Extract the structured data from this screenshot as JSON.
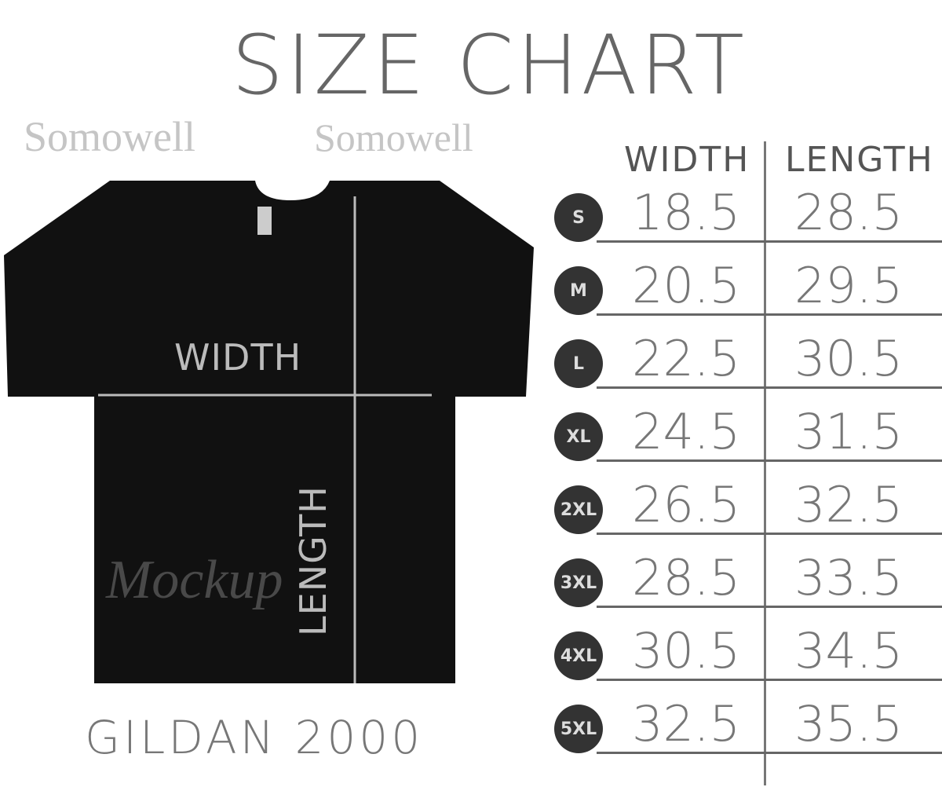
{
  "title": "SIZE CHART",
  "watermark": "Somowell",
  "shirt": {
    "width_label": "WIDTH",
    "length_label": "LENGTH",
    "watermark": "Mockup"
  },
  "model": "GILDAN 2000",
  "table": {
    "headers": [
      "WIDTH",
      "LENGTH"
    ],
    "rows": [
      {
        "size": "S",
        "width": "18.5",
        "length": "28.5"
      },
      {
        "size": "M",
        "width": "20.5",
        "length": "29.5"
      },
      {
        "size": "L",
        "width": "22.5",
        "length": "30.5"
      },
      {
        "size": "XL",
        "width": "24.5",
        "length": "31.5"
      },
      {
        "size": "2XL",
        "width": "26.5",
        "length": "32.5"
      },
      {
        "size": "3XL",
        "width": "28.5",
        "length": "33.5"
      },
      {
        "size": "4XL",
        "width": "30.5",
        "length": "34.5"
      },
      {
        "size": "5XL",
        "width": "32.5",
        "length": "35.5"
      }
    ]
  }
}
